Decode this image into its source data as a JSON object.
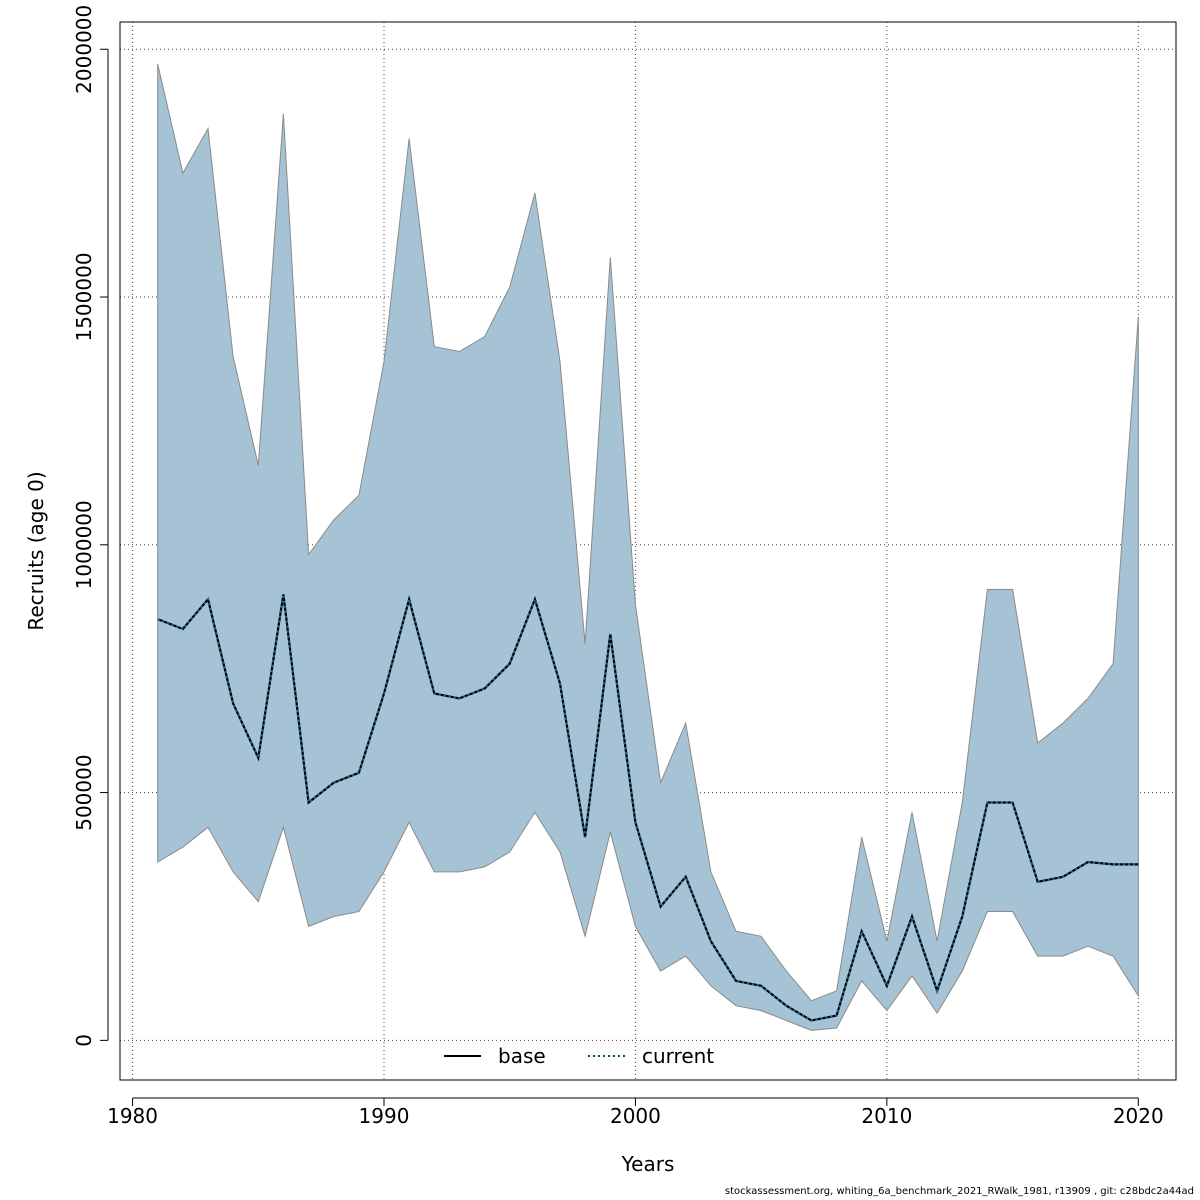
{
  "chart_data": {
    "type": "area",
    "xlabel": "Years",
    "ylabel": "Recruits (age 0)",
    "xlim": [
      1979.5,
      2021.5
    ],
    "ylim": [
      -80000,
      2055000
    ],
    "x_ticks": [
      1980,
      1990,
      2000,
      2010,
      2020
    ],
    "y_ticks": [
      0,
      500000,
      1000000,
      1500000,
      2000000
    ],
    "x_tick_labels": [
      "1980",
      "1990",
      "2000",
      "2010",
      "2020"
    ],
    "y_tick_labels": [
      "0",
      "500000",
      "1000000",
      "1500000",
      "2000000"
    ],
    "grid": true,
    "legend_position": "bottom-center",
    "legend": [
      {
        "label": "base",
        "style": "solid",
        "color": "#000000"
      },
      {
        "label": "current",
        "style": "dotted",
        "color": "#00517a"
      }
    ],
    "band_color": "#a5c3d4",
    "band_edge_color": "#8a8a8a",
    "x": [
      1981,
      1982,
      1983,
      1984,
      1985,
      1986,
      1987,
      1988,
      1989,
      1990,
      1991,
      1992,
      1993,
      1994,
      1995,
      1996,
      1997,
      1998,
      1999,
      2000,
      2001,
      2002,
      2003,
      2004,
      2005,
      2006,
      2007,
      2008,
      2009,
      2010,
      2011,
      2012,
      2013,
      2014,
      2015,
      2016,
      2017,
      2018,
      2019,
      2020
    ],
    "series": [
      {
        "name": "current",
        "values": [
          850000,
          830000,
          890000,
          680000,
          570000,
          900000,
          480000,
          520000,
          540000,
          700000,
          890000,
          700000,
          690000,
          710000,
          760000,
          890000,
          720000,
          410000,
          820000,
          440000,
          270000,
          330000,
          200000,
          120000,
          110000,
          70000,
          40000,
          50000,
          220000,
          110000,
          250000,
          100000,
          250000,
          480000,
          480000,
          320000,
          330000,
          360000,
          355000,
          355000
        ],
        "lower": [
          360000,
          390000,
          430000,
          340000,
          280000,
          430000,
          230000,
          250000,
          260000,
          340000,
          440000,
          340000,
          340000,
          350000,
          380000,
          460000,
          380000,
          210000,
          420000,
          230000,
          140000,
          170000,
          110000,
          70000,
          60000,
          40000,
          20000,
          25000,
          120000,
          60000,
          130000,
          55000,
          140000,
          260000,
          260000,
          170000,
          170000,
          190000,
          170000,
          90000
        ],
        "upper": [
          1970000,
          1750000,
          1840000,
          1380000,
          1160000,
          1870000,
          980000,
          1050000,
          1100000,
          1370000,
          1820000,
          1400000,
          1390000,
          1420000,
          1520000,
          1710000,
          1370000,
          800000,
          1580000,
          880000,
          520000,
          640000,
          340000,
          220000,
          210000,
          140000,
          80000,
          100000,
          410000,
          200000,
          460000,
          200000,
          480000,
          910000,
          910000,
          600000,
          640000,
          690000,
          760000,
          1460000
        ]
      }
    ]
  },
  "footer": "stockassessment.org, whiting_6a_benchmark_2021_RWalk_1981, r13909 , git: c28bdc2a44ad"
}
